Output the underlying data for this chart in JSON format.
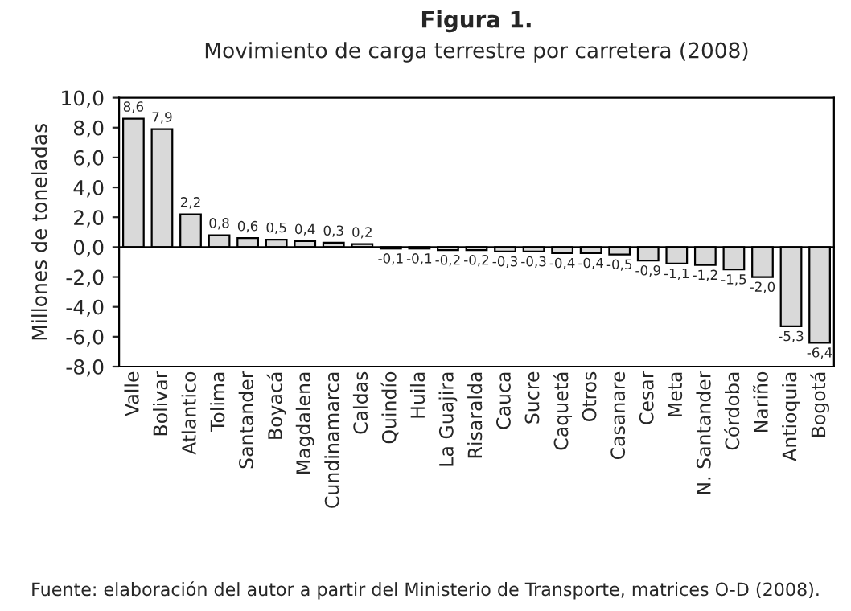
{
  "chart_data": {
    "type": "bar",
    "title": "Figura 1.",
    "subtitle": "Movimiento de carga terrestre por carretera (2008)",
    "ylabel": "Millones de toneladas",
    "categories": [
      "Valle",
      "Bolivar",
      "Atlantico",
      "Tolima",
      "Santander",
      "Boyacá",
      "Magdalena",
      "Cundinamarca",
      "Caldas",
      "Quindío",
      "Huila",
      "La Guajira",
      "Risaralda",
      "Cauca",
      "Sucre",
      "Caquetá",
      "Otros",
      "Casanare",
      "Cesar",
      "Meta",
      "N. Santander",
      "Córdoba",
      "Nariño",
      "Antioquia",
      "Bogotá"
    ],
    "values": [
      8.6,
      7.9,
      2.2,
      0.8,
      0.6,
      0.5,
      0.4,
      0.3,
      0.2,
      -0.1,
      -0.1,
      -0.2,
      -0.2,
      -0.3,
      -0.3,
      -0.4,
      -0.4,
      -0.5,
      -0.9,
      -1.1,
      -1.2,
      -1.5,
      -2.0,
      -5.3,
      -6.4
    ],
    "value_labels": [
      "8,6",
      "7,9",
      "2,2",
      "0,8",
      "0,6",
      "0,5",
      "0,4",
      "0,3",
      "0,2",
      "-0,1",
      "-0,1",
      "-0,2",
      "-0,2",
      "-0,3",
      "-0,3",
      "-0,4",
      "-0,4",
      "-0,5",
      "-0,9",
      "-1,1",
      "-1,2",
      "-1,5",
      "-2,0",
      "-5,3",
      "-6,4"
    ],
    "color": "#d9d9d9",
    "ylim": [
      -8,
      10
    ],
    "yticks": [
      {
        "value": -8,
        "label": "-8,0"
      },
      {
        "value": -6,
        "label": "-6,0"
      },
      {
        "value": -4,
        "label": "-4,0"
      },
      {
        "value": -2,
        "label": "-2,0"
      },
      {
        "value": 0,
        "label": "0,0"
      },
      {
        "value": 2,
        "label": "2,0"
      },
      {
        "value": 4,
        "label": "4,0"
      },
      {
        "value": 6,
        "label": "6,0"
      },
      {
        "value": 8,
        "label": "8,0"
      },
      {
        "value": 10,
        "label": "10,0"
      }
    ],
    "annotations": [
      "Fuente: elaboración del autor a partir del Ministerio de Transporte, matrices O-D (2008)."
    ]
  }
}
